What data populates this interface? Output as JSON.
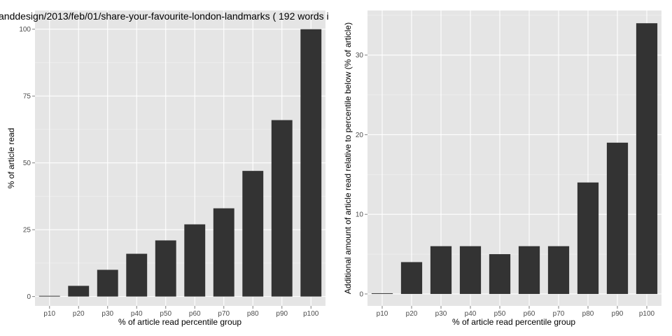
{
  "page_title": "anddesign/2013/feb/01/share-your-favourite-london-landmarks ( 192 words i",
  "colors": {
    "panel_bg": "#e5e5e5",
    "grid_major": "#ffffff",
    "grid_minor": "#f2f2f2",
    "bar": "#333333"
  },
  "chart_data": [
    {
      "type": "bar",
      "title": "anddesign/2013/feb/01/share-your-favourite-london-landmarks ( 192 words i",
      "xlabel": "% of article read percentile group",
      "ylabel": "% of article read",
      "categories": [
        "p10",
        "p20",
        "p30",
        "p40",
        "p50",
        "p60",
        "p70",
        "p80",
        "p90",
        "p100"
      ],
      "values": [
        0,
        4,
        10,
        16,
        21,
        27,
        33,
        47,
        66,
        100
      ],
      "ylim": [
        -3.5,
        107
      ],
      "yticks": [
        0,
        25,
        50,
        75,
        100
      ],
      "ytick_labels": [
        "0",
        "25",
        "50",
        "75",
        "100"
      ],
      "grid": true
    },
    {
      "type": "bar",
      "title": "",
      "xlabel": "% of article read percentile group",
      "ylabel": "Additional amount of article read relative to percentile below (% of article)",
      "categories": [
        "p10",
        "p20",
        "p30",
        "p40",
        "p50",
        "p60",
        "p70",
        "p80",
        "p90",
        "p100"
      ],
      "values": [
        0,
        4,
        6,
        6,
        5,
        6,
        6,
        14,
        19,
        34
      ],
      "ylim": [
        -1.5,
        35.6
      ],
      "yticks": [
        0,
        10,
        20,
        30
      ],
      "ytick_labels": [
        "0",
        "10",
        "20",
        "30"
      ],
      "grid": true
    }
  ]
}
